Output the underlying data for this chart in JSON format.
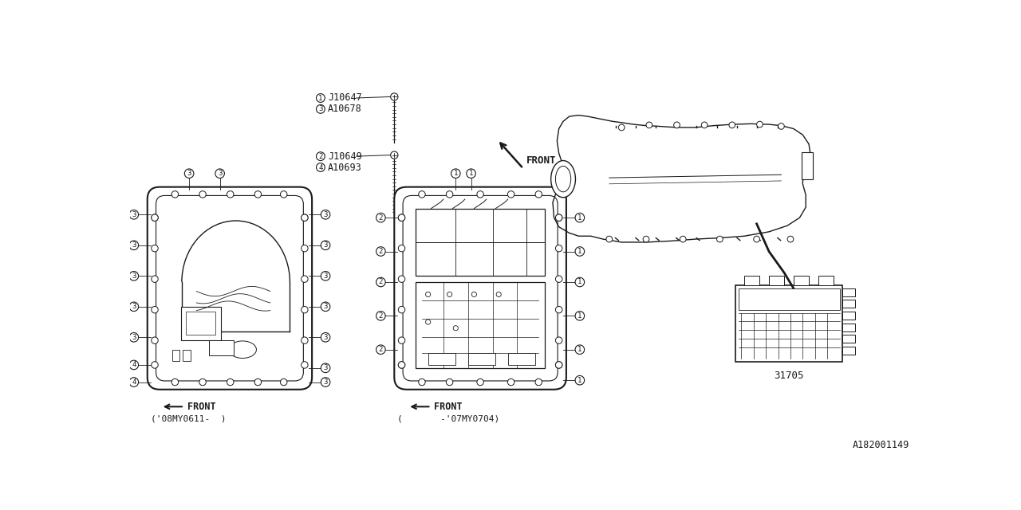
{
  "bg_color": "#ffffff",
  "line_color": "#1a1a1a",
  "diagram_id": "A182001149",
  "part_number_31705": "31705",
  "caption_left": "('08MY0611-  )",
  "caption_mid": "(       -'07MY0704)",
  "bolt1_label1": "J10647",
  "bolt1_label2": "A10678",
  "bolt2_label1": "J10649",
  "bolt2_label2": "A10693",
  "font_mono": "DejaVu Sans Mono"
}
